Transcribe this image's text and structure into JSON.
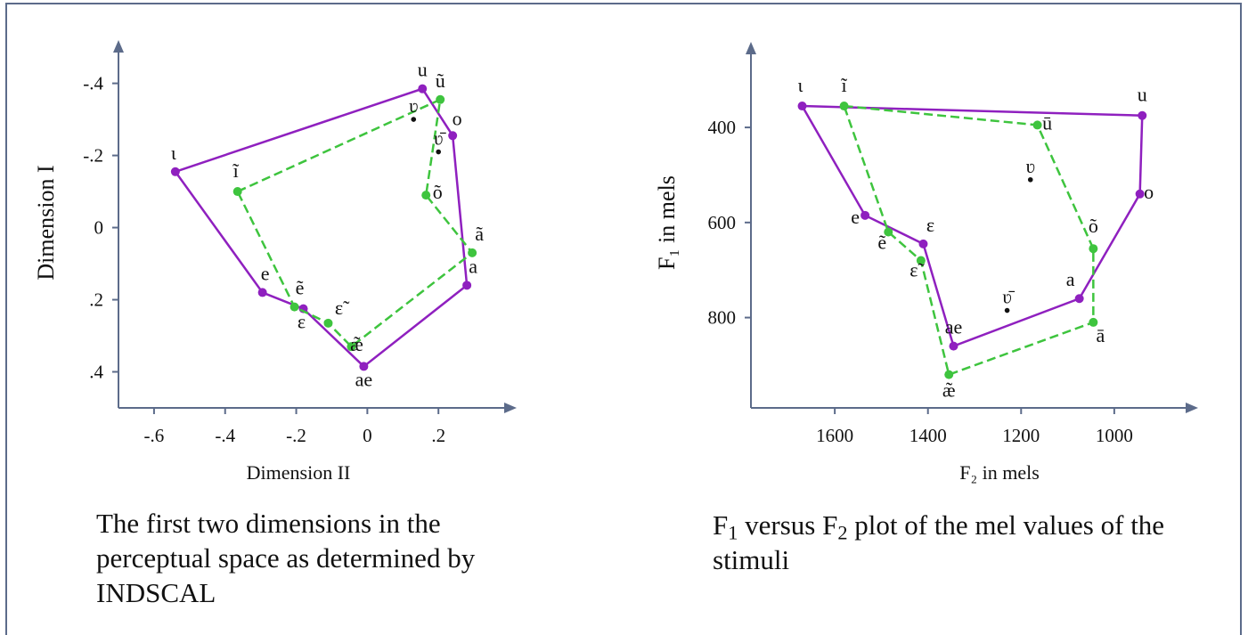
{
  "colors": {
    "frame": "#5c6b8a",
    "axis": "#5c6b8a",
    "oral": "#8f20bf",
    "nasal": "#3ec43e",
    "text": "#111111"
  },
  "chart_data": [
    {
      "type": "scatter",
      "xlabel": "Dimension II",
      "ylabel": "Dimension I",
      "xticks": [
        {
          "v": -0.6,
          "label": "-.6"
        },
        {
          "v": -0.4,
          "label": "-.4"
        },
        {
          "v": -0.2,
          "label": "-.2"
        },
        {
          "v": 0,
          "label": "0"
        },
        {
          "v": 0.2,
          "label": ".2"
        }
      ],
      "yticks": [
        {
          "v": -0.4,
          "label": "-.4"
        },
        {
          "v": -0.2,
          "label": "-.2"
        },
        {
          "v": 0,
          "label": "0"
        },
        {
          "v": 0.2,
          "label": ".2"
        },
        {
          "v": 0.4,
          "label": ".4"
        }
      ],
      "xlim": [
        -0.7,
        0.42
      ],
      "ylim": [
        -0.52,
        0.5
      ],
      "y_inverted": true,
      "series": [
        {
          "kind": "oral",
          "closed": true,
          "points": [
            {
              "label": "ι",
              "x": -0.54,
              "y": -0.155
            },
            {
              "label": "u",
              "x": 0.155,
              "y": -0.385
            },
            {
              "label": "o",
              "x": 0.24,
              "y": -0.255
            },
            {
              "label": "a",
              "x": 0.28,
              "y": 0.16
            },
            {
              "label": "ae",
              "x": -0.01,
              "y": 0.385
            },
            {
              "label": "ε",
              "x": -0.18,
              "y": 0.225
            },
            {
              "label": "e",
              "x": -0.295,
              "y": 0.18
            }
          ]
        },
        {
          "kind": "nasal",
          "closed": true,
          "points": [
            {
              "label": "ĩ",
              "x": -0.365,
              "y": -0.1
            },
            {
              "label": "ũ",
              "x": 0.205,
              "y": -0.355
            },
            {
              "label": "õ",
              "x": 0.165,
              "y": -0.09
            },
            {
              "label": "ã",
              "x": 0.295,
              "y": 0.07
            },
            {
              "label": "æ̃",
              "x": -0.045,
              "y": 0.33
            },
            {
              "label": "ε̃",
              "x": -0.11,
              "y": 0.265
            },
            {
              "label": "ẽ",
              "x": -0.205,
              "y": 0.22
            }
          ]
        }
      ],
      "extra_points": [
        {
          "label": "ʋ",
          "x": 0.13,
          "y": -0.3
        },
        {
          "label": "ʋ̄",
          "x": 0.2,
          "y": -0.21
        }
      ]
    },
    {
      "type": "scatter",
      "xlabel": "F₂ in mels",
      "ylabel": "F₁ in mels",
      "xticks": [
        {
          "v": 1600,
          "label": "1600"
        },
        {
          "v": 1400,
          "label": "1400"
        },
        {
          "v": 1200,
          "label": "1200"
        },
        {
          "v": 1000,
          "label": "1000"
        }
      ],
      "yticks": [
        {
          "v": 400,
          "label": "400"
        },
        {
          "v": 600,
          "label": "600"
        },
        {
          "v": 800,
          "label": "800"
        }
      ],
      "xlim": [
        1780,
        820
      ],
      "ylim": [
        220,
        990
      ],
      "y_inverted": true,
      "series": [
        {
          "kind": "oral",
          "closed": true,
          "points": [
            {
              "label": "ι",
              "x": 1670,
              "y": 355
            },
            {
              "label": "u",
              "x": 940,
              "y": 375
            },
            {
              "label": "o",
              "x": 945,
              "y": 540
            },
            {
              "label": "a",
              "x": 1075,
              "y": 760
            },
            {
              "label": "ae",
              "x": 1345,
              "y": 860
            },
            {
              "label": "ε",
              "x": 1410,
              "y": 645
            },
            {
              "label": "e",
              "x": 1535,
              "y": 585
            }
          ]
        },
        {
          "kind": "nasal",
          "closed": true,
          "points": [
            {
              "label": "ĩ",
              "x": 1580,
              "y": 355
            },
            {
              "label": "ū",
              "x": 1165,
              "y": 395
            },
            {
              "label": "õ",
              "x": 1045,
              "y": 655
            },
            {
              "label": "ā",
              "x": 1045,
              "y": 810
            },
            {
              "label": "æ̃",
              "x": 1355,
              "y": 920
            },
            {
              "label": "ε̃",
              "x": 1415,
              "y": 680
            },
            {
              "label": "ẽ",
              "x": 1485,
              "y": 620
            }
          ]
        }
      ],
      "extra_points": [
        {
          "label": "ʋ",
          "x": 1180,
          "y": 510
        },
        {
          "label": "ʋ̄",
          "x": 1230,
          "y": 785
        }
      ]
    }
  ],
  "captions": {
    "left": "The first two dimensions in the perceptual space as determined by INDSCAL",
    "right_parts": [
      "F",
      "1",
      " versus F",
      "2",
      " plot of the mel values of the stimuli"
    ]
  }
}
